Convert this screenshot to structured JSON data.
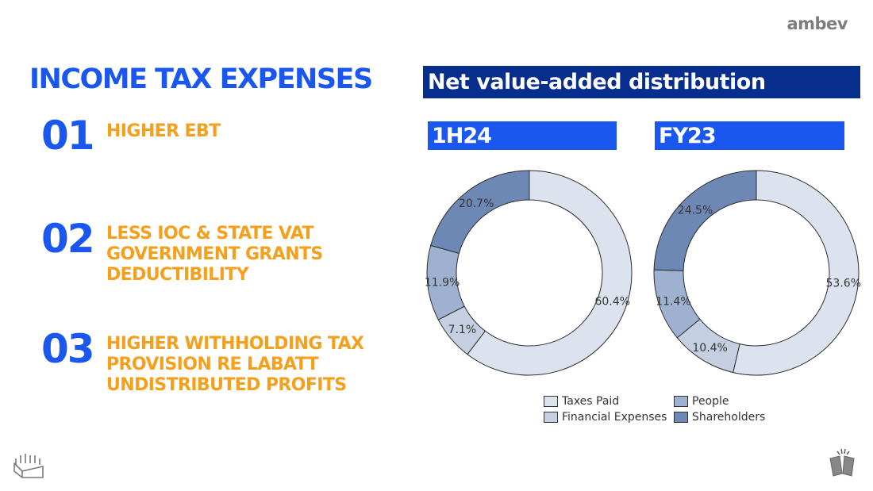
{
  "logo": "ambev",
  "title": "INCOME TAX EXPENSES",
  "points": [
    {
      "number": "01",
      "lines": [
        "HIGHER EBT"
      ]
    },
    {
      "number": "02",
      "lines": [
        "LESS IOC & STATE VAT",
        "GOVERNMENT GRANTS",
        "DEDUCTIBILITY"
      ]
    },
    {
      "number": "03",
      "lines": [
        "HIGHER WITHHOLDING TAX",
        "PROVISION RE LABATT",
        "UNDISTRIBUTED PROFITS"
      ]
    }
  ],
  "chart_section_title": "Net value-added distribution",
  "colors": {
    "brand_blue": "#1a56f0",
    "navy": "#072e8c",
    "orange": "#f5a01c",
    "taxes_paid": "#dde3ee",
    "financial_expenses": "#c4cfe1",
    "people": "#9fb1d0",
    "shareholders": "#6e88b5"
  },
  "chart_data": [
    {
      "type": "pie",
      "variant": "donut",
      "title": "1H24",
      "categories": [
        "Taxes Paid",
        "Financial Expenses",
        "People",
        "Shareholders"
      ],
      "values": [
        60.4,
        7.1,
        11.9,
        20.7
      ],
      "labels": [
        "60.4%",
        "7.1%",
        "11.9%",
        "20.7%"
      ],
      "start": "top",
      "direction": "clockwise"
    },
    {
      "type": "pie",
      "variant": "donut",
      "title": "FY23",
      "categories": [
        "Taxes Paid",
        "Financial Expenses",
        "People",
        "Shareholders"
      ],
      "values": [
        53.6,
        10.4,
        11.4,
        24.5
      ],
      "labels": [
        "53.6%",
        "10.4%",
        "11.4%",
        "24.5%"
      ],
      "start": "top",
      "direction": "clockwise"
    }
  ],
  "legend": {
    "placement": "bottom",
    "items": [
      {
        "label": "Taxes Paid",
        "color_key": "taxes_paid"
      },
      {
        "label": "People",
        "color_key": "people"
      },
      {
        "label": "Financial Expenses",
        "color_key": "financial_expenses"
      },
      {
        "label": "Shareholders",
        "color_key": "shareholders"
      }
    ]
  },
  "icons": {
    "left": "beer-crate-icon",
    "right": "cheers-icon"
  }
}
